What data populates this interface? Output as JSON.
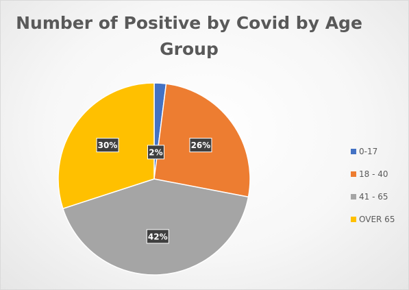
{
  "chart_data": {
    "type": "pie",
    "title": "Number of Positive by Covid by Age Group",
    "categories": [
      "0-17",
      "18 - 40",
      "41 - 65",
      "OVER 65"
    ],
    "values": [
      2,
      26,
      42,
      30
    ],
    "data_labels": [
      "2%",
      "26%",
      "42%",
      "30%"
    ],
    "colors": [
      "#4472C4",
      "#ED7D31",
      "#A5A5A5",
      "#FFC000"
    ],
    "legend_position": "right",
    "data_label_style": "dark-callout"
  }
}
